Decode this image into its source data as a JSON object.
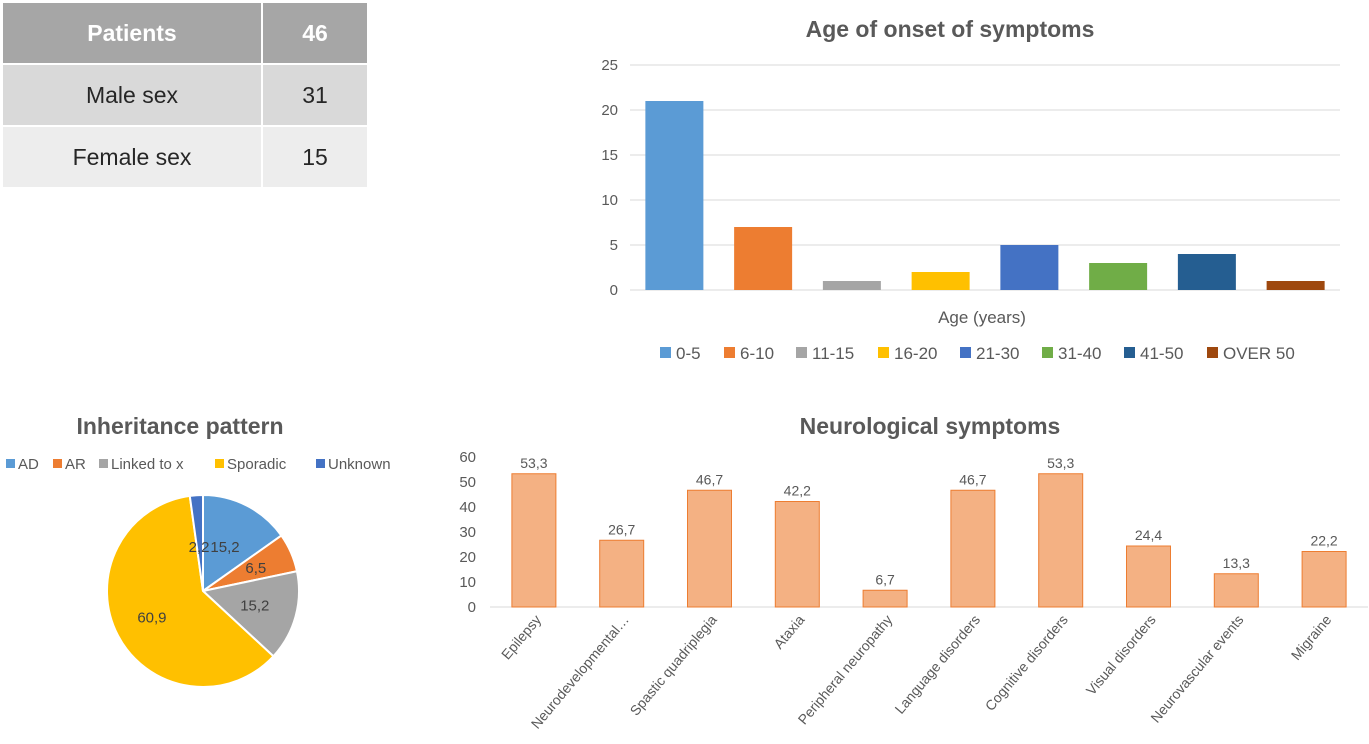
{
  "table": {
    "header": [
      "Patients",
      "46"
    ],
    "rows": [
      [
        "Male sex",
        "31"
      ],
      [
        "Female sex",
        "15"
      ]
    ]
  },
  "chart_data": [
    {
      "id": "age-onset",
      "type": "bar",
      "title": "Age of onset of symptoms",
      "xlabel": "Age (years)",
      "ylabel": "",
      "ylim": [
        0,
        25
      ],
      "yticks": [
        0,
        5,
        10,
        15,
        20,
        25
      ],
      "grid": true,
      "legend": "bottom",
      "series": [
        {
          "name": "0-5",
          "value": 21,
          "color": "#5b9bd5"
        },
        {
          "name": "6-10",
          "value": 7,
          "color": "#ed7d31"
        },
        {
          "name": "11-15",
          "value": 1,
          "color": "#a5a5a5"
        },
        {
          "name": "16-20",
          "value": 2,
          "color": "#ffc000"
        },
        {
          "name": "21-30",
          "value": 5,
          "color": "#4472c4"
        },
        {
          "name": "31-40",
          "value": 3,
          "color": "#70ad47"
        },
        {
          "name": "41-50",
          "value": 4,
          "color": "#255e91"
        },
        {
          "name": "OVER 50",
          "value": 1,
          "color": "#9e480e"
        }
      ]
    },
    {
      "id": "inheritance",
      "type": "pie",
      "title": "Inheritance pattern",
      "legend": "top",
      "slices": [
        {
          "name": "AD",
          "value": 15.2,
          "label": "15,2",
          "color": "#5b9bd5"
        },
        {
          "name": "AR",
          "value": 6.5,
          "label": "6,5",
          "color": "#ed7d31"
        },
        {
          "name": "Linked to x",
          "value": 15.2,
          "label": "15,2",
          "color": "#a5a5a5"
        },
        {
          "name": "Sporadic",
          "value": 60.9,
          "label": "60,9",
          "color": "#ffc000"
        },
        {
          "name": "Unknown",
          "value": 2.2,
          "label": "2,2",
          "color": "#4472c4"
        }
      ]
    },
    {
      "id": "neuro",
      "type": "bar",
      "title": "Neurological symptoms",
      "ylim": [
        0,
        60
      ],
      "yticks": [
        0,
        10,
        20,
        30,
        40,
        50,
        60
      ],
      "grid": false,
      "categories": [
        "Epilepsy",
        "Neurodevelopmental…",
        "Spastic quadriplegia",
        "Ataxia",
        "Peripheral neuropathy",
        "Language disorders",
        "Cognitive disorders",
        "Visual disorders",
        "Neurovascular events",
        "Migraine"
      ],
      "values": [
        53.3,
        26.7,
        46.7,
        42.2,
        6.7,
        46.7,
        53.3,
        24.4,
        13.3,
        22.2
      ],
      "value_labels": [
        "53,3",
        "26,7",
        "46,7",
        "42,2",
        "6,7",
        "46,7",
        "53,3",
        "24,4",
        "13,3",
        "22,2"
      ],
      "color": "#f4b183",
      "border_color": "#ed7d31"
    }
  ]
}
